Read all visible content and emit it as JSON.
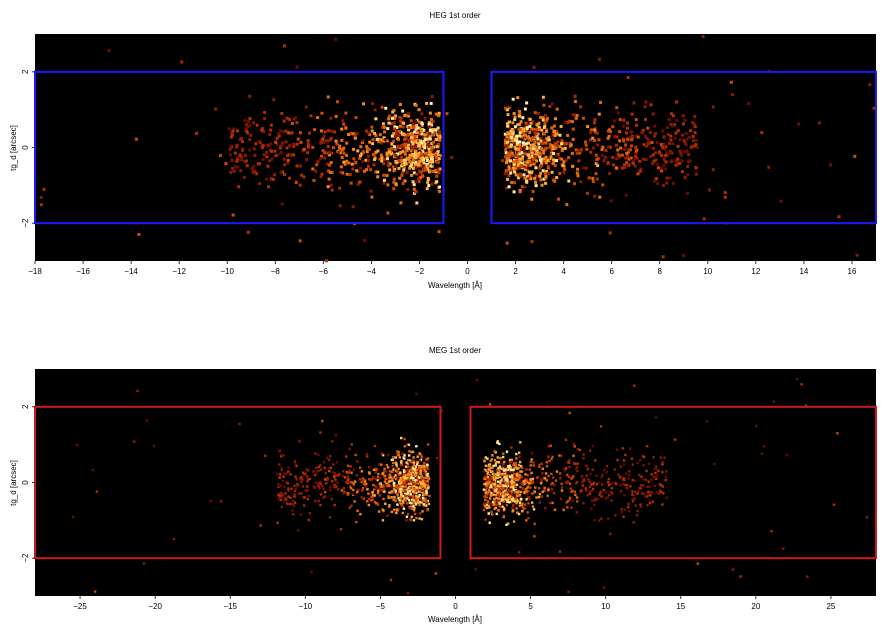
{
  "chart_data": [
    {
      "type": "heatmap",
      "title": "HEG 1st order",
      "xlabel": "Wavelength [Å]",
      "ylabel": "tg_d [arcsec]",
      "xlim": [
        -18,
        17
      ],
      "ylim": [
        -3,
        3
      ],
      "xticks": [
        -18,
        -16,
        -14,
        -12,
        -10,
        -8,
        -6,
        -4,
        -2,
        0,
        2,
        4,
        6,
        8,
        10,
        12,
        14,
        16
      ],
      "yticks": [
        -2,
        0,
        2
      ],
      "background": "#000000",
      "region_color": "#1a1aff",
      "regions": [
        {
          "x": [
            -18,
            -1
          ],
          "y": [
            -2,
            2
          ]
        },
        {
          "x": [
            1,
            17
          ],
          "y": [
            -2,
            2
          ]
        }
      ],
      "clusters": [
        {
          "x_range": [
            -10,
            -1.2
          ],
          "peak_x": -2,
          "density": "high",
          "y_spread": 0.5
        },
        {
          "x_range": [
            1.5,
            9.5
          ],
          "peak_x": 2,
          "density": "high",
          "y_spread": 0.5
        }
      ]
    },
    {
      "type": "heatmap",
      "title": "MEG 1st order",
      "xlabel": "Wavelength [Å]",
      "ylabel": "tg_d [arcsec]",
      "xlim": [
        -28,
        28
      ],
      "ylim": [
        -3,
        3
      ],
      "xticks": [
        -25,
        -20,
        -15,
        -10,
        -5,
        0,
        5,
        10,
        15,
        20,
        25
      ],
      "yticks": [
        -2,
        0,
        2
      ],
      "background": "#000000",
      "region_color": "#cc1a1a",
      "regions": [
        {
          "x": [
            -28,
            -1
          ],
          "y": [
            -2,
            2
          ]
        },
        {
          "x": [
            1,
            28
          ],
          "y": [
            -2,
            2
          ]
        }
      ],
      "clusters": [
        {
          "x_range": [
            -12,
            -1.8
          ],
          "peak_x": -3,
          "density": "high",
          "y_spread": 0.4
        },
        {
          "x_range": [
            1.8,
            14
          ],
          "peak_x": 3,
          "density": "high",
          "y_spread": 0.4
        }
      ]
    }
  ]
}
